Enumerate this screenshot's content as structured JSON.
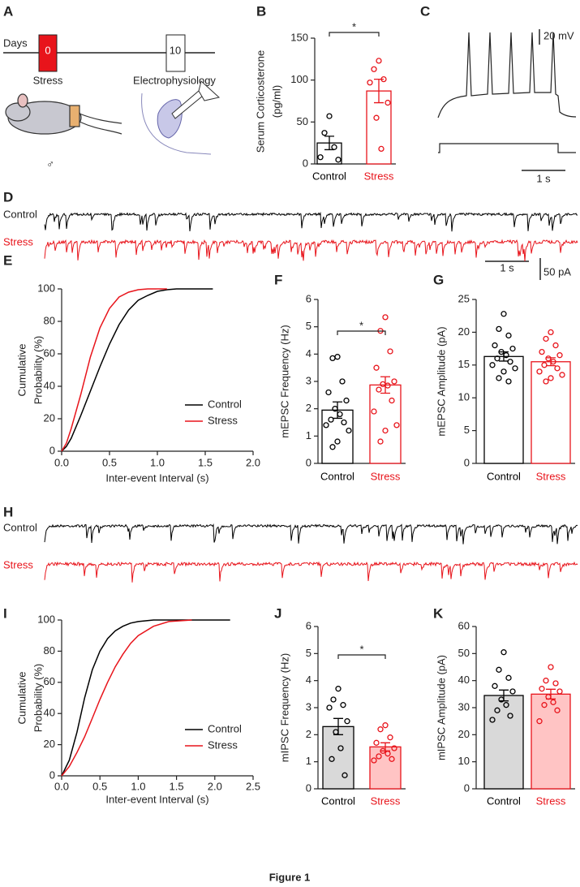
{
  "figure": {
    "panel_labels": [
      "A",
      "B",
      "C",
      "D",
      "E",
      "F",
      "G",
      "H",
      "I",
      "J",
      "K"
    ],
    "timeline": {
      "axis_label": "Days",
      "day_start": 0,
      "day_end": 10,
      "start_label": "Stress",
      "end_label": "Electrophysiology"
    },
    "sex_symbol": "♂",
    "panel_c": {
      "voltage_scale": "20 mV",
      "time_scale": "1 s"
    },
    "panel_d": {
      "control_label": "Control",
      "stress_label": "Stress",
      "time_scale": "1 s",
      "current_scale": "50 pA"
    },
    "panel_h": {
      "control_label": "Control",
      "stress_label": "Stress"
    },
    "caption": "Figure 1"
  },
  "chart_data": [
    {
      "type": "bar",
      "ylabel": [
        "Serum Corticosterone",
        "(pg/ml)"
      ],
      "categories": [
        "Control",
        "Stress"
      ],
      "values": [
        25,
        87
      ],
      "errors": [
        8,
        14
      ],
      "points": [
        [
          57,
          37,
          20,
          8,
          5
        ],
        [
          123,
          113,
          101,
          97,
          73,
          55,
          18
        ]
      ],
      "colors": [
        "#000000",
        "#e8141b"
      ],
      "fills": [
        "#ffffff",
        "#ffffff"
      ],
      "ylim": [
        0,
        150
      ],
      "yticks": [
        0,
        50,
        100,
        150
      ],
      "significance": "*"
    },
    {
      "type": "line",
      "xlabel": "Inter-event Interval (s)",
      "ylabel": [
        "Cumulative",
        "Probability (%)"
      ],
      "series": [
        {
          "name": "Control",
          "color": "#000000",
          "x": [
            0,
            0.05,
            0.1,
            0.2,
            0.3,
            0.4,
            0.5,
            0.6,
            0.7,
            0.8,
            0.9,
            1.0,
            1.1,
            1.2,
            1.4,
            1.58
          ],
          "values": [
            0,
            3,
            8,
            22,
            37,
            52,
            66,
            78,
            87,
            93,
            96,
            98.5,
            99.5,
            100,
            100,
            100
          ]
        },
        {
          "name": "Stress",
          "color": "#e8141b",
          "x": [
            0,
            0.05,
            0.1,
            0.2,
            0.3,
            0.4,
            0.5,
            0.6,
            0.7,
            0.8,
            0.9,
            1.0,
            1.1
          ],
          "values": [
            0,
            5,
            14,
            35,
            58,
            76,
            88,
            95,
            98,
            99.5,
            100,
            100,
            100
          ]
        }
      ],
      "xlim": [
        0,
        2
      ],
      "xticks": [
        {
          "value": 0,
          "label": "0.0"
        },
        0.5,
        {
          "value": 1,
          "label": "1.0"
        },
        1.5,
        {
          "value": 2,
          "label": "2.0"
        }
      ],
      "ylim": [
        0,
        100
      ],
      "yticks": [
        0,
        20,
        40,
        60,
        80,
        100
      ],
      "legend": "lower right"
    },
    {
      "type": "bar",
      "ylabel": [
        "mEPSC Frequency (Hz)"
      ],
      "categories": [
        "Control",
        "Stress"
      ],
      "values": [
        1.95,
        2.87
      ],
      "errors": [
        0.3,
        0.3
      ],
      "points": [
        [
          3.9,
          3.85,
          3.0,
          2.6,
          2.3,
          2.0,
          1.8,
          1.6,
          1.5,
          1.4,
          1.2,
          0.8,
          0.6
        ],
        [
          5.35,
          4.85,
          4.1,
          3.5,
          3.0,
          2.9,
          2.85,
          2.7,
          2.3,
          1.9,
          1.4,
          1.2,
          0.8
        ]
      ],
      "colors": [
        "#000000",
        "#e8141b"
      ],
      "fills": [
        "#ffffff",
        "#ffffff"
      ],
      "ylim": [
        0,
        6
      ],
      "yticks": [
        0,
        1,
        2,
        3,
        4,
        5,
        6
      ],
      "significance": "*"
    },
    {
      "type": "bar",
      "ylabel": [
        "mEPSC Amplitude (pA)"
      ],
      "categories": [
        "Control",
        "Stress"
      ],
      "values": [
        16.3,
        15.5
      ],
      "errors": [
        0.7,
        0.6
      ],
      "points": [
        [
          22.8,
          20.5,
          19.5,
          18,
          17.5,
          17,
          16.5,
          16,
          15.5,
          15,
          14.5,
          14,
          13,
          12.5
        ],
        [
          20,
          19,
          18,
          17,
          16.5,
          16,
          15.5,
          15,
          14.5,
          14,
          13.5,
          13,
          12.5
        ]
      ],
      "colors": [
        "#000000",
        "#e8141b"
      ],
      "fills": [
        "#ffffff",
        "#ffffff"
      ],
      "ylim": [
        0,
        25
      ],
      "yticks": [
        0,
        5,
        10,
        15,
        20,
        25
      ]
    },
    {
      "type": "line",
      "xlabel": "Inter-event Interval (s)",
      "ylabel": [
        "Cumulative",
        "Probability (%)"
      ],
      "series": [
        {
          "name": "Control",
          "color": "#000000",
          "x": [
            0,
            0.1,
            0.2,
            0.3,
            0.4,
            0.5,
            0.6,
            0.7,
            0.8,
            0.9,
            1.0,
            1.2,
            1.5,
            2.2
          ],
          "values": [
            0,
            10,
            28,
            50,
            68,
            80,
            88,
            93,
            96,
            98,
            99,
            100,
            100,
            100
          ]
        },
        {
          "name": "Stress",
          "color": "#e8141b",
          "x": [
            0,
            0.1,
            0.2,
            0.3,
            0.4,
            0.5,
            0.6,
            0.7,
            0.8,
            0.9,
            1.0,
            1.2,
            1.4,
            1.7
          ],
          "values": [
            0,
            6,
            15,
            25,
            37,
            49,
            60,
            70,
            78,
            85,
            90,
            96,
            99,
            100
          ]
        }
      ],
      "xlim": [
        0,
        2.5
      ],
      "xticks": [
        {
          "value": 0,
          "label": "0.0"
        },
        0.5,
        {
          "value": 1,
          "label": "1.0"
        },
        1.5,
        {
          "value": 2,
          "label": "2.0"
        },
        2.5
      ],
      "ylim": [
        0,
        100
      ],
      "yticks": [
        0,
        20,
        40,
        60,
        80,
        100
      ],
      "legend": "lower right"
    },
    {
      "type": "bar",
      "ylabel": [
        "mIPSC Frequency (Hz)"
      ],
      "categories": [
        "Control",
        "Stress"
      ],
      "values": [
        2.3,
        1.55
      ],
      "errors": [
        0.3,
        0.15
      ],
      "points": [
        [
          3.7,
          3.3,
          3.1,
          3.0,
          2.5,
          2.1,
          1.5,
          1.1,
          0.5
        ],
        [
          2.35,
          2.2,
          1.9,
          1.7,
          1.5,
          1.4,
          1.3,
          1.2,
          1.1,
          1.05
        ]
      ],
      "colors": [
        "#000000",
        "#e8141b"
      ],
      "fills": [
        "#d9d9d9",
        "#ffc4c4"
      ],
      "ylim": [
        0,
        6
      ],
      "yticks": [
        0,
        1,
        2,
        3,
        4,
        5,
        6
      ],
      "significance": "*"
    },
    {
      "type": "bar",
      "ylabel": [
        "mIPSC Amplitude (pA)"
      ],
      "categories": [
        "Control",
        "Stress"
      ],
      "values": [
        34.5,
        35
      ],
      "errors": [
        2,
        1.8
      ],
      "points": [
        [
          50.5,
          44,
          41,
          38,
          36,
          33,
          31,
          29,
          27,
          25.5
        ],
        [
          45,
          40,
          39,
          37,
          36,
          34,
          32,
          31,
          29,
          25
        ]
      ],
      "colors": [
        "#000000",
        "#e8141b"
      ],
      "fills": [
        "#d9d9d9",
        "#ffc4c4"
      ],
      "ylim": [
        0,
        60
      ],
      "yticks": [
        0,
        10,
        20,
        30,
        40,
        50,
        60
      ]
    }
  ]
}
